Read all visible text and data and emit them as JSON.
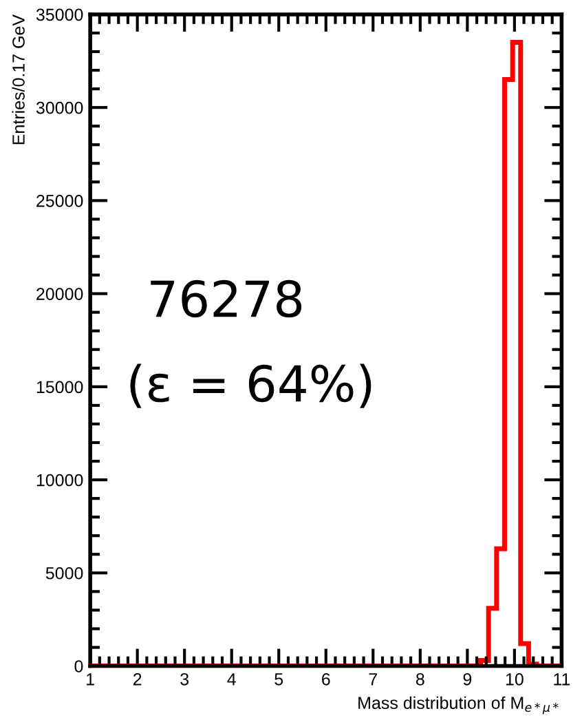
{
  "chart_data": {
    "type": "histogram",
    "xlabel": "Mass distribution of M$_{e*μ*}$",
    "ylabel": "Entries/0.17 GeV",
    "bins": [
      1.0,
      9.28,
      9.45,
      9.62,
      9.79,
      9.96,
      10.13,
      10.3,
      10.47,
      11.0
    ],
    "values": [
      0,
      300,
      3100,
      6300,
      31500,
      33500,
      1200,
      100,
      0
    ],
    "color": "#ff0000",
    "xlim": [
      1,
      11
    ],
    "xticks": [
      1,
      2,
      3,
      4,
      5,
      6,
      7,
      8,
      9,
      10,
      11
    ],
    "ylim": [
      0,
      35000
    ],
    "yticks": [
      0,
      5000,
      10000,
      15000,
      20000,
      25000,
      30000,
      35000
    ],
    "annotations": [
      "76278",
      "(ε = 64%)"
    ],
    "grid": false,
    "legend": false
  }
}
